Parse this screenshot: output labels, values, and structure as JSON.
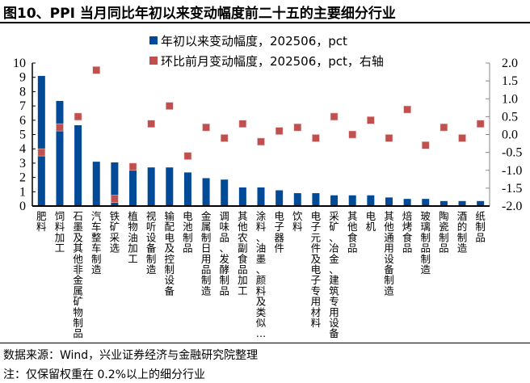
{
  "title": "图10、PPI 当月同比年初以来变动幅度前二十五的主要细分行业",
  "footer": {
    "source": "数据来源：Wind，兴业证券经济与金融研究院整理",
    "note": "注：仅保留权重在 0.2%以上的细分行业"
  },
  "chart_data": {
    "type": "bar",
    "title": "图10、PPI 当月同比年初以来变动幅度前二十五的主要细分行业",
    "xlabel": "",
    "ylabel": "",
    "ylim": [
      0,
      10
    ],
    "y2lim": [
      -2.0,
      2.0
    ],
    "y_ticks": [
      "0",
      "1",
      "2",
      "3",
      "4",
      "5",
      "6",
      "7",
      "8",
      "9",
      "10"
    ],
    "y2_ticks": [
      "-2.0",
      "-1.5",
      "-1.0",
      "-0.5",
      "0.0",
      "0.5",
      "1.0",
      "1.5",
      "2.0"
    ],
    "grid": false,
    "legend_position": "top",
    "categories": [
      "肥料",
      "饲料加工",
      "石墨及其他非金属矿物制品",
      "汽车整车制造",
      "铁矿采选",
      "植物油加工",
      "视听设备制造",
      "输配电及控制设备",
      "电池制品",
      "金属制日用品制造",
      "调味品、发酵制品",
      "其他农副食品加工",
      "涂料、油墨、颜料及类似…",
      "电子器件",
      "饮料",
      "电子元件及电子专用材料",
      "采矿、冶金、建筑专用设备",
      "其他食品",
      "电机",
      "其他通用设备制造",
      "焙烤食品",
      "玻璃制品制造",
      "陶瓷制品",
      "酒的制造",
      "纸制品"
    ],
    "series": [
      {
        "name": "年初以来变动幅度，202506，pct",
        "type": "bar",
        "axis": "left",
        "color": "#004a98",
        "values": [
          9.1,
          7.35,
          5.65,
          3.1,
          3.05,
          2.85,
          2.7,
          2.7,
          2.35,
          1.95,
          1.85,
          1.3,
          1.3,
          1.1,
          0.9,
          0.9,
          0.75,
          0.75,
          0.75,
          0.6,
          0.5,
          0.5,
          0.35,
          0.35,
          0.35
        ]
      },
      {
        "name": "环比前月变动幅度，202506，pct，右轴",
        "type": "scatter",
        "axis": "right",
        "color": "#c0504d",
        "values": [
          -0.5,
          0.2,
          0.5,
          1.8,
          -1.8,
          -0.9,
          0.3,
          0.8,
          -0.6,
          0.2,
          -0.1,
          0.3,
          -0.2,
          0.1,
          0.2,
          -0.1,
          0.5,
          0.0,
          0.4,
          -0.1,
          0.7,
          -0.3,
          0.2,
          -0.1,
          0.3
        ]
      }
    ]
  }
}
